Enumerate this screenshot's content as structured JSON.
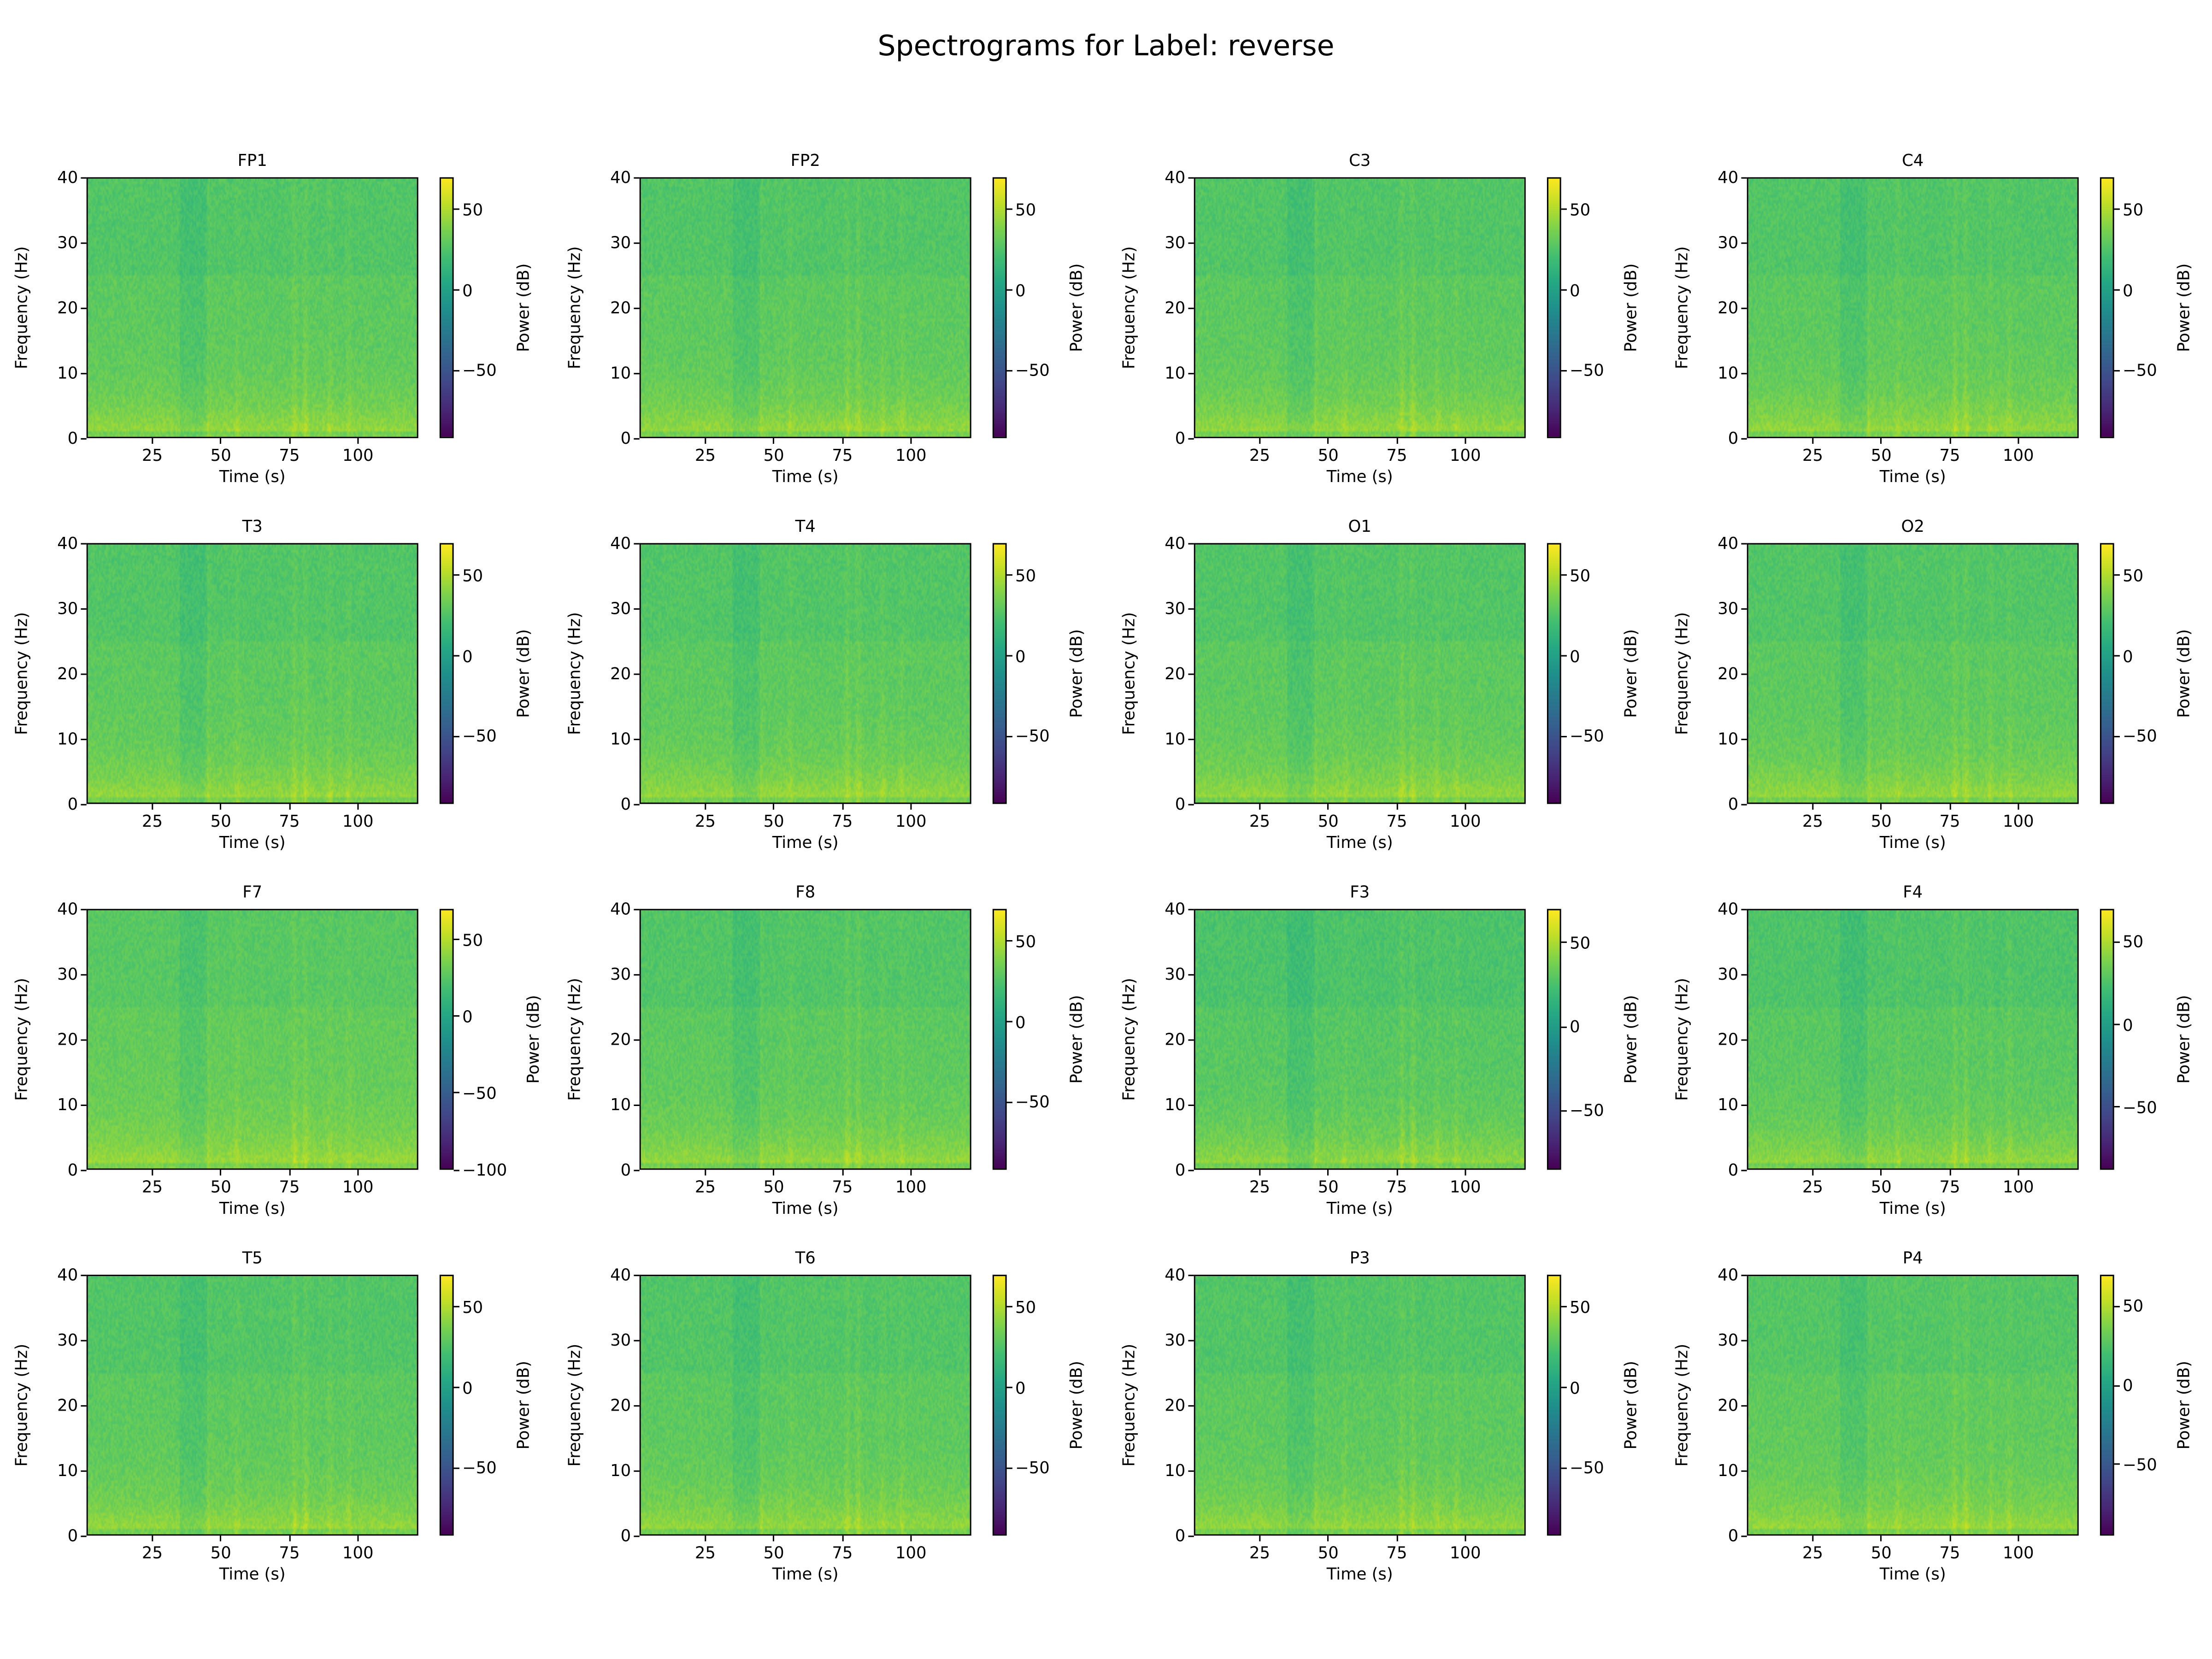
{
  "title": "Spectrograms for Label: reverse",
  "chart_data": {
    "type": "heatmap",
    "title": "Spectrograms for Label: reverse",
    "layout": "4x4 grid",
    "colormap": "viridis",
    "xlabel": "Time (s)",
    "ylabel": "Frequency (Hz)",
    "colorbar_label": "Power (dB)",
    "xlim": [
      1,
      122
    ],
    "ylim": [
      0,
      40
    ],
    "xticks": [
      25,
      50,
      75,
      100
    ],
    "yticks": [
      0,
      10,
      20,
      30,
      40
    ],
    "bright_time_stripes_s": [
      45,
      56,
      77,
      81,
      90,
      97
    ],
    "dim_time_region_s": [
      35,
      45
    ],
    "panels": [
      {
        "name": "FP1",
        "clim": [
          -92,
          70
        ],
        "cticks": [
          50,
          0,
          -50
        ]
      },
      {
        "name": "FP2",
        "clim": [
          -92,
          70
        ],
        "cticks": [
          50,
          0,
          -50
        ]
      },
      {
        "name": "C3",
        "clim": [
          -92,
          70
        ],
        "cticks": [
          50,
          0,
          -50
        ]
      },
      {
        "name": "C4",
        "clim": [
          -92,
          70
        ],
        "cticks": [
          50,
          0,
          -50
        ]
      },
      {
        "name": "T3",
        "clim": [
          -92,
          70
        ],
        "cticks": [
          50,
          0,
          -50
        ]
      },
      {
        "name": "T4",
        "clim": [
          -92,
          70
        ],
        "cticks": [
          50,
          0,
          -50
        ]
      },
      {
        "name": "O1",
        "clim": [
          -92,
          70
        ],
        "cticks": [
          50,
          0,
          -50
        ]
      },
      {
        "name": "O2",
        "clim": [
          -92,
          70
        ],
        "cticks": [
          50,
          0,
          -50
        ]
      },
      {
        "name": "F7",
        "clim": [
          -100,
          70
        ],
        "cticks": [
          50,
          0,
          -50,
          -100
        ]
      },
      {
        "name": "F8",
        "clim": [
          -92,
          70
        ],
        "cticks": [
          50,
          0,
          -50
        ]
      },
      {
        "name": "F3",
        "clim": [
          -85,
          70
        ],
        "cticks": [
          50,
          0,
          -50
        ]
      },
      {
        "name": "F4",
        "clim": [
          -88,
          70
        ],
        "cticks": [
          50,
          0,
          -50
        ]
      },
      {
        "name": "T5",
        "clim": [
          -92,
          70
        ],
        "cticks": [
          50,
          0,
          -50
        ]
      },
      {
        "name": "T6",
        "clim": [
          -92,
          70
        ],
        "cticks": [
          50,
          0,
          -50
        ]
      },
      {
        "name": "P3",
        "clim": [
          -92,
          70
        ],
        "cticks": [
          50,
          0,
          -50
        ]
      },
      {
        "name": "P4",
        "clim": [
          -95,
          70
        ],
        "cticks": [
          50,
          0,
          -50
        ]
      }
    ]
  }
}
